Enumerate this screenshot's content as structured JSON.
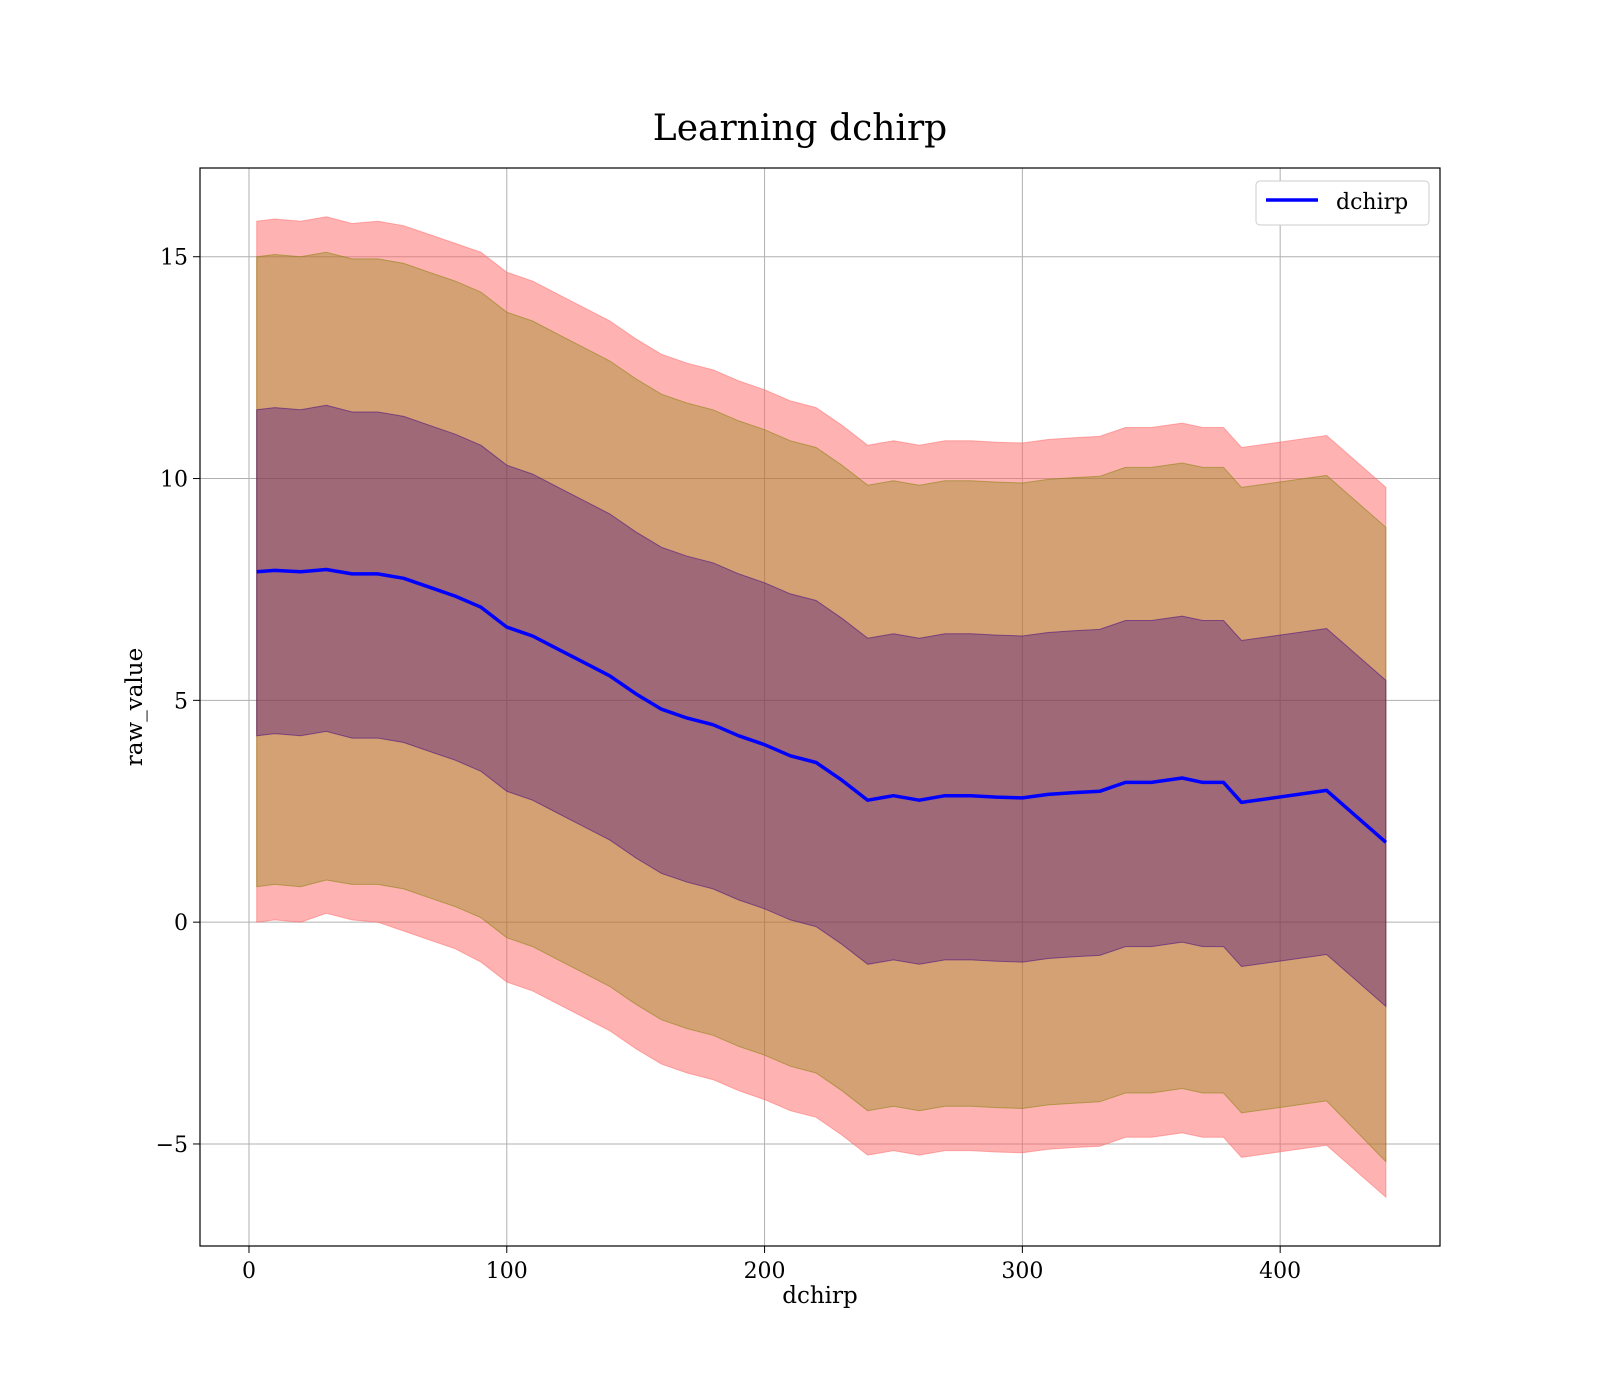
{
  "chart_data": {
    "type": "line",
    "title": "Learning dchirp",
    "xlabel": "dchirp",
    "ylabel": "raw_value",
    "xlim": [
      -19,
      462
    ],
    "ylim": [
      -7.3,
      17.0
    ],
    "xticks": [
      0,
      100,
      200,
      300,
      400
    ],
    "yticks": [
      -5,
      0,
      5,
      10,
      15
    ],
    "xtick_labels": [
      "0",
      "100",
      "200",
      "300",
      "400"
    ],
    "ytick_labels": [
      "−5",
      "0",
      "5",
      "10",
      "15"
    ],
    "grid": true,
    "legend_position": "top-right",
    "series": [
      {
        "name": "dchirp",
        "color": "#0000ff",
        "x": [
          3,
          10,
          20,
          30,
          40,
          50,
          60,
          70,
          80,
          90,
          100,
          110,
          120,
          130,
          140,
          150,
          160,
          170,
          180,
          190,
          200,
          210,
          220,
          230,
          240,
          250,
          260,
          270,
          280,
          290,
          300,
          310,
          320,
          330,
          340,
          350,
          362,
          370,
          378,
          385,
          418,
          441
        ],
        "y": [
          7.9,
          7.93,
          7.9,
          7.95,
          7.85,
          7.85,
          7.75,
          7.55,
          7.35,
          7.1,
          6.65,
          6.45,
          6.15,
          5.85,
          5.55,
          5.15,
          4.8,
          4.6,
          4.45,
          4.2,
          4.0,
          3.75,
          3.6,
          3.2,
          2.75,
          2.85,
          2.75,
          2.85,
          2.85,
          2.82,
          2.8,
          2.88,
          2.92,
          2.95,
          3.15,
          3.15,
          3.25,
          3.15,
          3.15,
          2.7,
          2.97,
          1.8
        ]
      }
    ],
    "bands": [
      {
        "color": "#ff6666",
        "opacity": 0.5,
        "lower": [
          0.0,
          0.05,
          0.0,
          0.2,
          0.05,
          0.0,
          -0.2,
          -0.4,
          -0.6,
          -0.9,
          -1.35,
          -1.55,
          -1.85,
          -2.15,
          -2.45,
          -2.85,
          -3.2,
          -3.4,
          -3.55,
          -3.8,
          -4.0,
          -4.25,
          -4.4,
          -4.8,
          -5.25,
          -5.15,
          -5.25,
          -5.15,
          -5.15,
          -5.18,
          -5.2,
          -5.12,
          -5.08,
          -5.05,
          -4.85,
          -4.85,
          -4.75,
          -4.85,
          -4.85,
          -5.3,
          -5.03,
          -6.2
        ],
        "upper": [
          15.8,
          15.85,
          15.8,
          15.9,
          15.75,
          15.8,
          15.7,
          15.5,
          15.3,
          15.1,
          14.65,
          14.45,
          14.15,
          13.85,
          13.55,
          13.15,
          12.8,
          12.6,
          12.45,
          12.2,
          12.0,
          11.75,
          11.6,
          11.2,
          10.75,
          10.85,
          10.75,
          10.85,
          10.85,
          10.82,
          10.8,
          10.88,
          10.92,
          10.95,
          11.15,
          11.15,
          11.25,
          11.15,
          11.15,
          10.7,
          10.97,
          9.8
        ]
      },
      {
        "color": "#808000",
        "opacity": 0.35,
        "lower": [
          0.8,
          0.85,
          0.8,
          0.95,
          0.85,
          0.85,
          0.75,
          0.55,
          0.35,
          0.1,
          -0.35,
          -0.55,
          -0.85,
          -1.15,
          -1.45,
          -1.85,
          -2.2,
          -2.4,
          -2.55,
          -2.8,
          -3.0,
          -3.25,
          -3.4,
          -3.8,
          -4.25,
          -4.15,
          -4.25,
          -4.15,
          -4.15,
          -4.18,
          -4.2,
          -4.12,
          -4.08,
          -4.05,
          -3.85,
          -3.85,
          -3.75,
          -3.85,
          -3.85,
          -4.3,
          -4.03,
          -5.4
        ],
        "upper": [
          15.0,
          15.05,
          15.0,
          15.1,
          14.95,
          14.95,
          14.85,
          14.65,
          14.45,
          14.2,
          13.75,
          13.55,
          13.25,
          12.95,
          12.65,
          12.25,
          11.9,
          11.7,
          11.55,
          11.3,
          11.1,
          10.85,
          10.7,
          10.3,
          9.85,
          9.95,
          9.85,
          9.95,
          9.95,
          9.92,
          9.9,
          9.98,
          10.02,
          10.05,
          10.25,
          10.25,
          10.35,
          10.25,
          10.25,
          9.8,
          10.07,
          8.9
        ]
      },
      {
        "color": "#400080",
        "opacity": 0.35,
        "lower": [
          4.2,
          4.25,
          4.2,
          4.3,
          4.15,
          4.15,
          4.05,
          3.85,
          3.65,
          3.4,
          2.95,
          2.75,
          2.45,
          2.15,
          1.85,
          1.45,
          1.1,
          0.9,
          0.75,
          0.5,
          0.3,
          0.05,
          -0.1,
          -0.5,
          -0.95,
          -0.85,
          -0.95,
          -0.85,
          -0.85,
          -0.88,
          -0.9,
          -0.82,
          -0.78,
          -0.75,
          -0.55,
          -0.55,
          -0.45,
          -0.55,
          -0.55,
          -1.0,
          -0.73,
          -1.9
        ],
        "upper": [
          11.55,
          11.6,
          11.55,
          11.65,
          11.5,
          11.5,
          11.4,
          11.2,
          11.0,
          10.75,
          10.3,
          10.1,
          9.8,
          9.5,
          9.2,
          8.8,
          8.45,
          8.25,
          8.1,
          7.85,
          7.65,
          7.4,
          7.25,
          6.85,
          6.4,
          6.5,
          6.4,
          6.5,
          6.5,
          6.47,
          6.45,
          6.53,
          6.57,
          6.6,
          6.8,
          6.8,
          6.9,
          6.8,
          6.8,
          6.35,
          6.62,
          5.45
        ]
      }
    ]
  }
}
